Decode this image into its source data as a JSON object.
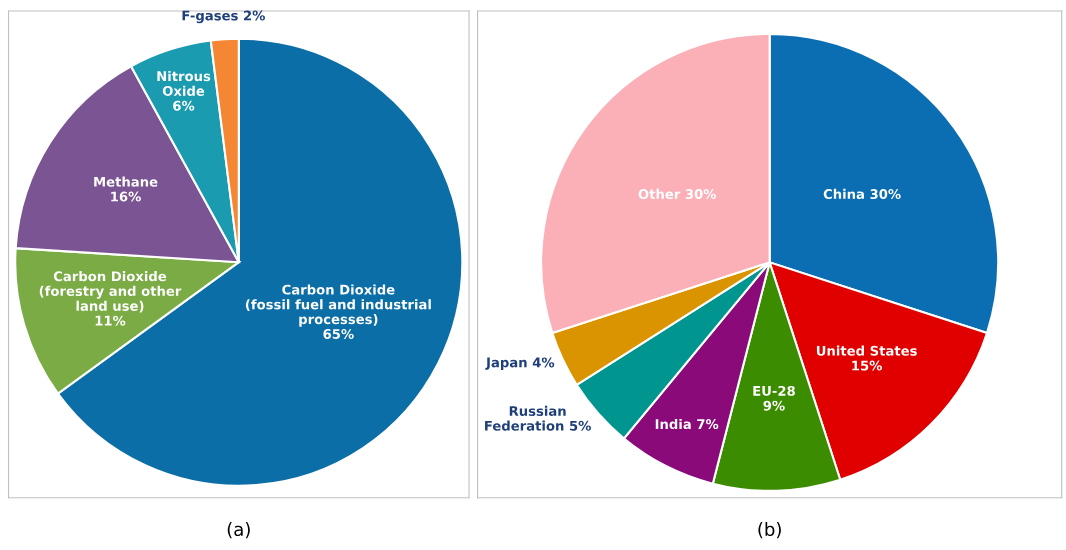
{
  "chart_data": [
    {
      "type": "pie",
      "categories": [
        "Carbon Dioxide\n(fossil fuel and industrial\nprocesses)",
        "Carbon Dioxide\n(forestry and other\nland use)",
        "Methane",
        "Nitrous\nOxide",
        "F-gases"
      ],
      "values": [
        65,
        11,
        16,
        6,
        2
      ],
      "colors": [
        "#0b6ea6",
        "#7aab45",
        "#7b5493",
        "#1a9bb0",
        "#f58634"
      ],
      "value_labels": [
        "\n65%",
        "\n11%",
        "\n16%",
        "\n6%",
        " 2%"
      ],
      "annotations": [
        "(a)"
      ]
    },
    {
      "type": "pie",
      "categories": [
        "China",
        "United States",
        "EU-28",
        "India",
        "Russian\nFederation",
        "Japan",
        "Other"
      ],
      "values": [
        30,
        15,
        9,
        7,
        5,
        4,
        30
      ],
      "colors": [
        "#0b6eb3",
        "#e00000",
        "#3c8c00",
        "#8b0a7a",
        "#00968f",
        "#d99400",
        "#fbb0b8"
      ],
      "value_labels": [
        " 30%",
        "\n15%",
        "\n9%",
        " 7%",
        " 5%",
        " 4%",
        " 30%"
      ],
      "annotations": [
        "(b)"
      ]
    }
  ]
}
